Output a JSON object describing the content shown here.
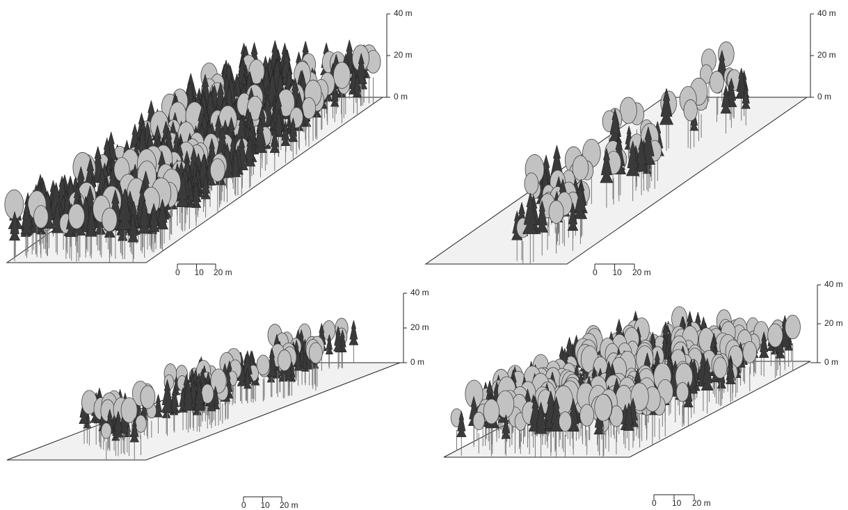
{
  "panels": [
    {
      "height_labels": [
        "40 m",
        "20 m",
        "0 m"
      ],
      "scale_labels": [
        "0",
        "10",
        "20 m"
      ]
    },
    {
      "height_labels": [
        "40 m",
        "20 m",
        "0 m"
      ],
      "scale_labels": [
        "0",
        "10",
        "20 m"
      ]
    },
    {
      "height_labels": [
        "40 m",
        "20 m",
        "0 m"
      ],
      "scale_labels": [
        "0",
        "10",
        "20 m"
      ]
    },
    {
      "height_labels": [
        "40 m",
        "20 m",
        "0 m"
      ],
      "scale_labels": [
        "0",
        "10",
        "20 m"
      ]
    }
  ]
}
